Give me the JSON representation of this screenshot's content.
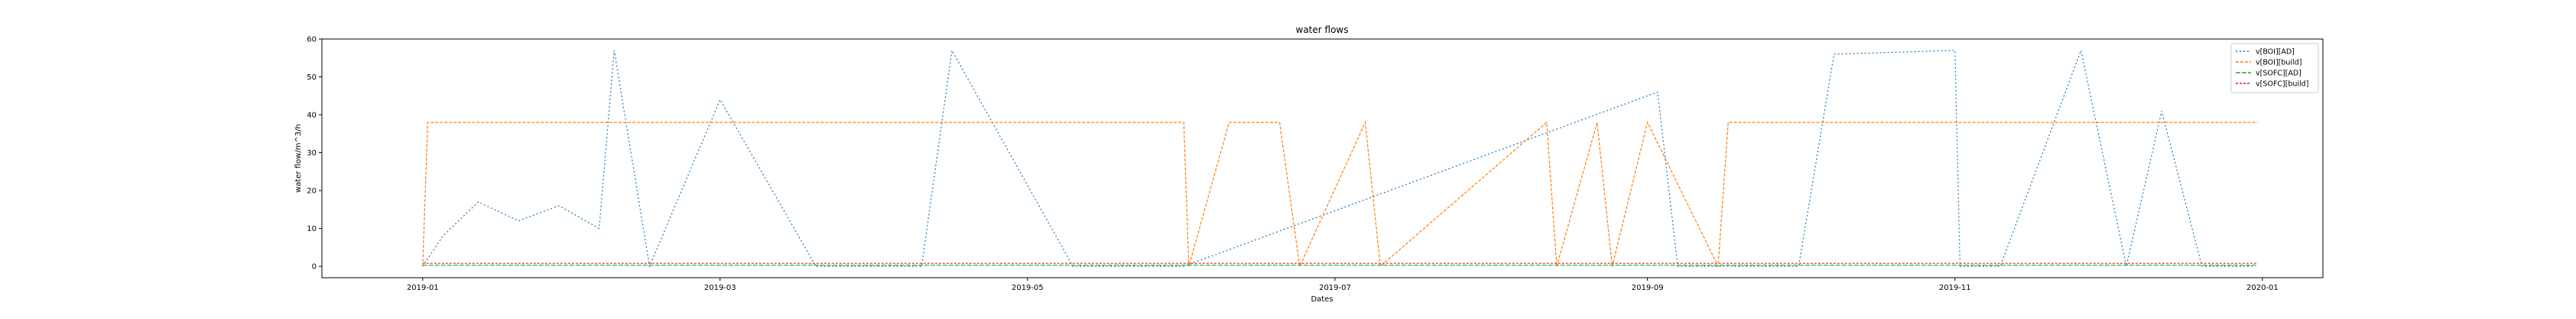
{
  "chart_data": {
    "type": "line",
    "title": "water flows",
    "xlabel": "Dates",
    "ylabel": "water flow/m^3/h",
    "ylim": [
      -3,
      60
    ],
    "xlim": [
      "2018-12-12",
      "2020-01-13"
    ],
    "yticks": [
      0,
      10,
      20,
      30,
      40,
      50,
      60
    ],
    "xticks": [
      {
        "date": "2019-01-01",
        "label": "2019-01"
      },
      {
        "date": "2019-03-01",
        "label": "2019-03"
      },
      {
        "date": "2019-05-01",
        "label": "2019-05"
      },
      {
        "date": "2019-07-01",
        "label": "2019-07"
      },
      {
        "date": "2019-09-01",
        "label": "2019-09"
      },
      {
        "date": "2019-11-01",
        "label": "2019-11"
      },
      {
        "date": "2020-01-01",
        "label": "2020-01"
      }
    ],
    "legend_position": "top-right",
    "grid": false,
    "series": [
      {
        "name": "v[BOI][AD]",
        "color": "#1f77b4",
        "dash": "2,3",
        "x": [
          "2019-01-01",
          "2019-01-05",
          "2019-01-12",
          "2019-01-20",
          "2019-01-28",
          "2019-02-05",
          "2019-02-08",
          "2019-02-15",
          "2019-03-01",
          "2019-03-20",
          "2019-04-10",
          "2019-04-16",
          "2019-05-10",
          "2019-06-01",
          "2019-09-03",
          "2019-09-07",
          "2019-10-01",
          "2019-10-08",
          "2019-11-01",
          "2019-11-02",
          "2019-11-10",
          "2019-11-26",
          "2019-12-05",
          "2019-12-12",
          "2019-12-20",
          "2019-12-30"
        ],
        "y": [
          0,
          8,
          17,
          12,
          16,
          10,
          57,
          0,
          44,
          0,
          0,
          57,
          0,
          0,
          46,
          0,
          0,
          56,
          57,
          0,
          0,
          57,
          0,
          41,
          0,
          0
        ]
      },
      {
        "name": "v[BOI][build]",
        "color": "#ff7f0e",
        "dash": "4,2",
        "x": [
          "2019-01-01",
          "2019-01-02",
          "2019-02-03",
          "2019-02-09",
          "2019-06-01",
          "2019-06-02",
          "2019-06-10",
          "2019-06-20",
          "2019-06-24",
          "2019-07-07",
          "2019-07-10",
          "2019-08-12",
          "2019-08-14",
          "2019-08-22",
          "2019-08-25",
          "2019-09-01",
          "2019-09-15",
          "2019-09-17",
          "2019-12-31"
        ],
        "y": [
          0,
          38,
          38,
          38,
          38,
          0,
          38,
          38,
          0,
          38,
          0,
          38,
          0,
          38,
          0,
          38,
          0,
          38,
          38
        ]
      },
      {
        "name": "v[SOFC][AD]",
        "color": "#2ca02c",
        "dash": "6,2",
        "x": [
          "2019-01-01",
          "2019-12-31"
        ],
        "y": [
          0.3,
          0.3
        ]
      },
      {
        "name": "v[SOFC][build]",
        "color": "#d62728",
        "dash": "3,2",
        "x": [
          "2019-01-01",
          "2019-12-31"
        ],
        "y": [
          0.8,
          0.8
        ]
      }
    ]
  }
}
